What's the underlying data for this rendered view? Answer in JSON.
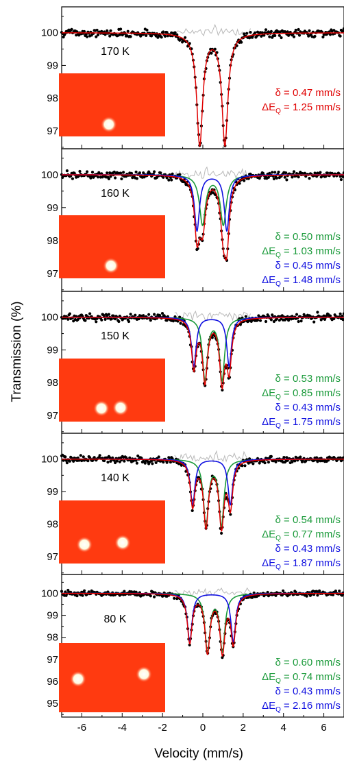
{
  "chart_data": {
    "type": "line",
    "title": "",
    "xlabel": "Velocity (mm/s)",
    "ylabel": "Transmission (%)",
    "xlim": [
      -7,
      7
    ],
    "xticks": [
      -6,
      -4,
      -2,
      0,
      2,
      4,
      6
    ],
    "shared_x_axis": true,
    "legend": "none",
    "colors": {
      "data_points": "#000000",
      "total_fit": "#e00000",
      "component_1": "#1a9a3a",
      "component_2": "#1010e0",
      "residual": "#b8b8b8",
      "inset_background": "#ff3a10",
      "inset_spot": "#fffbe0"
    },
    "panels": [
      {
        "temperature": "170 K",
        "ylim": [
          96.6,
          100.35
        ],
        "yticks": [
          97,
          98,
          99,
          100
        ],
        "components": [
          {
            "color": "red",
            "lines": [
              "δ = 0.47 mm/s",
              "ΔE_Q = 1.25 mm/s"
            ],
            "center": 0.47,
            "split": 1.25,
            "depth": 3.4,
            "width": 0.36
          }
        ],
        "inset_spots": [
          [
            0.47,
            0.81
          ]
        ]
      },
      {
        "temperature": "160 K",
        "ylim": [
          96.6,
          100.35
        ],
        "yticks": [
          97,
          98,
          99,
          100
        ],
        "components": [
          {
            "color": "green",
            "lines": [
              "δ = 0.50 mm/s",
              "ΔE_Q = 1.03 mm/s"
            ],
            "center": 0.5,
            "split": 1.03,
            "depth": 1.5,
            "width": 0.36
          },
          {
            "color": "blue",
            "lines": [
              "δ = 0.45 mm/s",
              "ΔE_Q = 1.48 mm/s"
            ],
            "center": 0.45,
            "split": 1.48,
            "depth": 1.7,
            "width": 0.3
          }
        ],
        "inset_spots": [
          [
            0.49,
            0.8
          ]
        ]
      },
      {
        "temperature": "150 K",
        "ylim": [
          96.6,
          100.35
        ],
        "yticks": [
          97,
          98,
          99,
          100
        ],
        "components": [
          {
            "color": "green",
            "lines": [
              "δ = 0.53 mm/s",
              "ΔE_Q = 0.85 mm/s"
            ],
            "center": 0.53,
            "split": 0.85,
            "depth": 1.9,
            "width": 0.3
          },
          {
            "color": "blue",
            "lines": [
              "δ = 0.43 mm/s",
              "ΔE_Q = 1.75 mm/s"
            ],
            "center": 0.43,
            "split": 1.75,
            "depth": 1.5,
            "width": 0.28
          }
        ],
        "inset_spots": [
          [
            0.4,
            0.79
          ],
          [
            0.58,
            0.78
          ]
        ]
      },
      {
        "temperature": "140 K",
        "ylim": [
          96.6,
          100.35
        ],
        "yticks": [
          97,
          98,
          99,
          100
        ],
        "components": [
          {
            "color": "green",
            "lines": [
              "δ = 0.54 mm/s",
              "ΔE_Q = 0.77 mm/s"
            ],
            "center": 0.54,
            "split": 0.77,
            "depth": 2.0,
            "width": 0.3
          },
          {
            "color": "blue",
            "lines": [
              "δ = 0.43 mm/s",
              "ΔE_Q = 1.87 mm/s"
            ],
            "center": 0.43,
            "split": 1.87,
            "depth": 1.4,
            "width": 0.28
          }
        ],
        "inset_spots": [
          [
            0.24,
            0.7
          ],
          [
            0.6,
            0.67
          ]
        ]
      },
      {
        "temperature": "80 K",
        "ylim": [
          94.6,
          100.45
        ],
        "yticks": [
          95,
          96,
          97,
          98,
          99,
          100
        ],
        "components": [
          {
            "color": "green",
            "lines": [
              "δ = 0.60 mm/s",
              "ΔE_Q = 0.74 mm/s"
            ],
            "center": 0.6,
            "split": 0.74,
            "depth": 2.6,
            "width": 0.3
          },
          {
            "color": "blue",
            "lines": [
              "δ = 0.43 mm/s",
              "ΔE_Q = 2.16 mm/s"
            ],
            "center": 0.43,
            "split": 2.16,
            "depth": 2.2,
            "width": 0.28
          }
        ],
        "inset_spots": [
          [
            0.18,
            0.52
          ],
          [
            0.8,
            0.45
          ]
        ]
      }
    ]
  }
}
